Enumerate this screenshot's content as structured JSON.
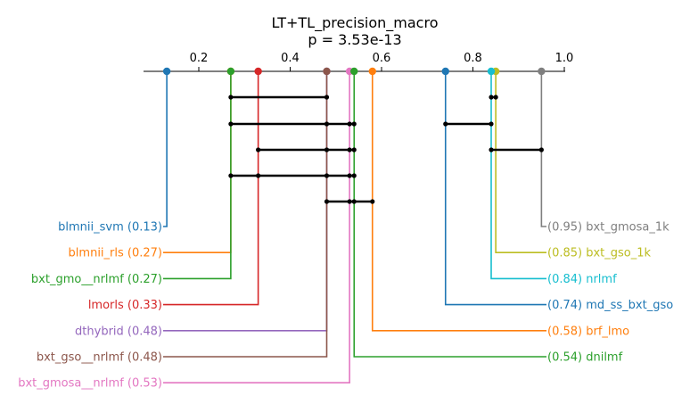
{
  "chart_data": {
    "type": "critical-difference",
    "title": "LT+TL_precision_macro",
    "subtitle": "p = 3.53e-13",
    "xlim": [
      0.05,
      1.0
    ],
    "ticks": [
      0.2,
      0.4,
      0.6,
      0.8,
      1.0
    ],
    "tick_labels": [
      "0.2",
      "0.4",
      "0.6",
      "0.8",
      "1.0"
    ],
    "left_methods": [
      {
        "name": "blmnii_svm",
        "value": 0.13,
        "label": "blmnii_svm (0.13)",
        "color": "#1f77b4"
      },
      {
        "name": "blmnii_rls",
        "value": 0.27,
        "label": "blmnii_rls (0.27)",
        "color": "#ff7f0e"
      },
      {
        "name": "bxt_gmo__nrlmf",
        "value": 0.27,
        "label": "bxt_gmo__nrlmf (0.27)",
        "color": "#2ca02c"
      },
      {
        "name": "lmorls",
        "value": 0.33,
        "label": "lmorls (0.33)",
        "color": "#d62728"
      },
      {
        "name": "dthybrid",
        "value": 0.48,
        "label": "dthybrid (0.48)",
        "color": "#9467bd"
      },
      {
        "name": "bxt_gso__nrlmf",
        "value": 0.48,
        "label": "bxt_gso__nrlmf (0.48)",
        "color": "#8c564b"
      },
      {
        "name": "bxt_gmosa__nrlmf",
        "value": 0.53,
        "label": "bxt_gmosa__nrlmf (0.53)",
        "color": "#e377c2"
      }
    ],
    "right_methods": [
      {
        "name": "bxt_gmosa_1k",
        "value": 0.95,
        "label": "(0.95) bxt_gmosa_1k",
        "color": "#7f7f7f"
      },
      {
        "name": "bxt_gso_1k",
        "value": 0.85,
        "label": "(0.85) bxt_gso_1k",
        "color": "#bcbd22"
      },
      {
        "name": "nrlmf",
        "value": 0.84,
        "label": "(0.84) nrlmf",
        "color": "#17becf"
      },
      {
        "name": "md_ss_bxt_gso",
        "value": 0.74,
        "label": "(0.74) md_ss_bxt_gso",
        "color": "#1f77b4"
      },
      {
        "name": "brf_lmo",
        "value": 0.58,
        "label": "(0.58) brf_lmo",
        "color": "#ff7f0e"
      },
      {
        "name": "dnilmf",
        "value": 0.54,
        "label": "(0.54) dnilmf",
        "color": "#2ca02c"
      }
    ],
    "cliques": [
      {
        "dots": [
          0.27,
          0.48
        ],
        "span": [
          0.27,
          0.48
        ]
      },
      {
        "dots": [
          0.27,
          0.48,
          0.53,
          0.54
        ],
        "span": [
          0.27,
          0.54
        ]
      },
      {
        "dots": [
          0.33,
          0.48,
          0.53,
          0.54
        ],
        "span": [
          0.33,
          0.54
        ]
      },
      {
        "dots": [
          0.27,
          0.33,
          0.48,
          0.53,
          0.54
        ],
        "span": [
          0.27,
          0.54
        ]
      },
      {
        "dots": [
          0.48,
          0.53,
          0.54,
          0.58
        ],
        "span": [
          0.48,
          0.58
        ]
      },
      {
        "dots": [
          0.84,
          0.85
        ],
        "span": [
          0.84,
          0.85
        ]
      },
      {
        "dots": [
          0.74,
          0.84
        ],
        "span": [
          0.74,
          0.84
        ]
      },
      {
        "dots": [
          0.84,
          0.95
        ],
        "span": [
          0.84,
          0.95
        ]
      }
    ]
  }
}
